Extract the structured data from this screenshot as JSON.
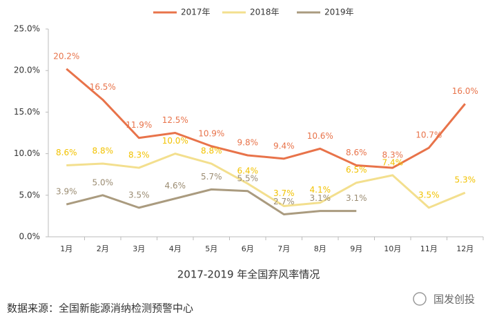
{
  "chart_data": {
    "type": "line",
    "title": "2017-2019 年全国弃风率情况",
    "source": "数据来源：全国新能源消纳检测预警中心",
    "watermark": "国发创投",
    "categories": [
      "1月",
      "2月",
      "3月",
      "4月",
      "5月",
      "6月",
      "7月",
      "8月",
      "9月",
      "10月",
      "11月",
      "12月"
    ],
    "series": [
      {
        "name": "2017年",
        "color": "#e8734a",
        "label_color": "#e8734a",
        "values": [
          20.2,
          16.5,
          11.9,
          12.5,
          10.9,
          9.8,
          9.4,
          10.6,
          8.6,
          8.3,
          10.7,
          16.0
        ],
        "value_labels": [
          "20.2%",
          "16.5%",
          "11.9%",
          "12.5%",
          "10.9%",
          "9.8%",
          "9.4%",
          "10.6%",
          "8.6%",
          "8.3%",
          "10.7%",
          "16.0%"
        ]
      },
      {
        "name": "2018年",
        "color": "#f3df8e",
        "label_color": "#f2c200",
        "values": [
          8.6,
          8.8,
          8.3,
          10.0,
          8.8,
          6.4,
          3.7,
          4.1,
          6.5,
          7.4,
          3.5,
          5.3
        ],
        "value_labels": [
          "8.6%",
          "8.8%",
          "8.3%",
          "10.0%",
          "8.8%",
          "6.4%",
          "3.7%",
          "4.1%",
          "6.5%",
          "7.4%",
          "3.5%",
          "5.3%"
        ]
      },
      {
        "name": "2019年",
        "color": "#aa9b7f",
        "label_color": "#9b8c72",
        "values": [
          3.9,
          5.0,
          3.5,
          4.6,
          5.7,
          5.5,
          2.7,
          3.1,
          3.1,
          null,
          null,
          null
        ],
        "value_labels": [
          "3.9%",
          "5.0%",
          "3.5%",
          "4.6%",
          "5.7%",
          "5.5%",
          "2.7%",
          "3.1%",
          "3.1%",
          null,
          null,
          null
        ]
      }
    ],
    "ylim": [
      0,
      25
    ],
    "yticks": [
      {
        "value": 0,
        "label": "0.0%"
      },
      {
        "value": 5,
        "label": "5.0%"
      },
      {
        "value": 10,
        "label": "10.0%"
      },
      {
        "value": 15,
        "label": "15.0%"
      },
      {
        "value": 20,
        "label": "20.0%"
      },
      {
        "value": 25,
        "label": "25.0%"
      }
    ],
    "legend": "top"
  }
}
